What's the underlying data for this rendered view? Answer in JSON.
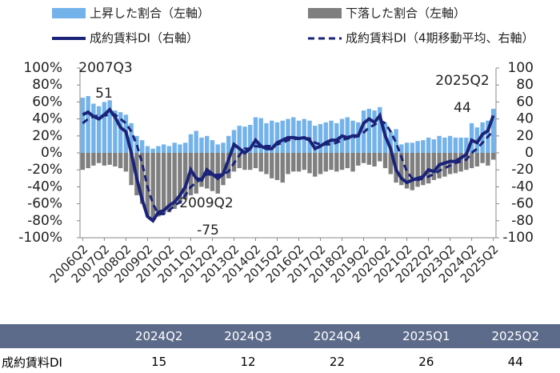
{
  "chart_data": {
    "type": "bar_line",
    "categories": [
      "2006Q2",
      null,
      null,
      null,
      "2007Q2",
      null,
      null,
      null,
      "2008Q2",
      null,
      null,
      null,
      "2009Q2",
      null,
      null,
      null,
      "2010Q2",
      null,
      null,
      null,
      "2011Q2",
      null,
      null,
      null,
      "2012Q2",
      null,
      null,
      null,
      "2013Q2",
      null,
      null,
      null,
      "2014Q2",
      null,
      null,
      null,
      "2015Q2",
      null,
      null,
      null,
      "2016Q2",
      null,
      null,
      null,
      "2017Q2",
      null,
      null,
      null,
      "2018Q2",
      null,
      null,
      null,
      "2019Q2",
      null,
      null,
      null,
      "2020Q2",
      null,
      null,
      null,
      "2021Q2",
      null,
      null,
      null,
      "2022Q2",
      null,
      null,
      null,
      "2023Q2",
      null,
      null,
      null,
      "2024Q2",
      null,
      null,
      null,
      "2025Q2"
    ],
    "series": [
      {
        "name": "上昇した割合（左軸）",
        "color": "#74b3ea",
        "kind": "bar",
        "values": [
          65,
          67,
          58,
          55,
          60,
          62,
          50,
          48,
          45,
          35,
          20,
          15,
          8,
          5,
          8,
          10,
          8,
          12,
          10,
          12,
          22,
          26,
          18,
          20,
          15,
          10,
          12,
          20,
          27,
          32,
          31,
          33,
          42,
          41,
          35,
          38,
          36,
          38,
          40,
          42,
          38,
          40,
          38,
          32,
          34,
          36,
          38,
          35,
          40,
          42,
          38,
          36,
          50,
          52,
          50,
          54,
          35,
          25,
          28,
          10,
          12,
          12,
          14,
          15,
          18,
          16,
          20,
          18,
          20,
          18,
          18,
          18,
          35,
          30,
          36,
          38,
          52
        ]
      },
      {
        "name": "下落した割合（左軸）",
        "color": "#7f7f7f",
        "kind": "bar",
        "values": [
          -20,
          -18,
          -15,
          -12,
          -15,
          -14,
          -16,
          -18,
          -22,
          -38,
          -50,
          -60,
          -75,
          -78,
          -75,
          -72,
          -70,
          -66,
          -60,
          -55,
          -50,
          -48,
          -40,
          -42,
          -45,
          -48,
          -38,
          -30,
          -22,
          -18,
          -20,
          -20,
          -18,
          -22,
          -25,
          -30,
          -32,
          -35,
          -25,
          -22,
          -22,
          -20,
          -24,
          -28,
          -25,
          -22,
          -20,
          -22,
          -20,
          -18,
          -22,
          -15,
          -12,
          -14,
          -16,
          -10,
          -18,
          -25,
          -35,
          -38,
          -42,
          -44,
          -40,
          -38,
          -36,
          -32,
          -30,
          -28,
          -25,
          -24,
          -22,
          -20,
          -18,
          -16,
          -12,
          -15,
          -8
        ]
      },
      {
        "name": "成約賃料DI（右軸）",
        "color": "#1b2378",
        "kind": "line",
        "axis": "y2",
        "values": [
          45,
          48,
          43,
          40,
          45,
          51,
          42,
          30,
          25,
          0,
          -30,
          -55,
          -75,
          -80,
          -70,
          -68,
          -62,
          -58,
          -50,
          -40,
          -20,
          -30,
          -32,
          -20,
          -25,
          -30,
          -25,
          -8,
          10,
          5,
          0,
          5,
          15,
          8,
          5,
          5,
          12,
          15,
          18,
          18,
          17,
          18,
          15,
          5,
          8,
          12,
          15,
          15,
          20,
          18,
          20,
          20,
          35,
          40,
          36,
          44,
          20,
          5,
          -20,
          -30,
          -35,
          -32,
          -30,
          -28,
          -20,
          -22,
          -14,
          -12,
          -10,
          -10,
          -6,
          -2,
          15,
          12,
          22,
          26,
          44
        ]
      },
      {
        "name": "成約賃料DI（4期移動平均、右軸）",
        "color": "#1b2378",
        "kind": "dashed",
        "axis": "y2",
        "values": [
          35,
          40,
          43,
          44,
          44,
          45,
          45,
          40,
          35,
          25,
          10,
          -12,
          -40,
          -60,
          -72,
          -72,
          -68,
          -62,
          -58,
          -50,
          -40,
          -35,
          -30,
          -25,
          -26,
          -26,
          -25,
          -22,
          -12,
          -3,
          5,
          5,
          8,
          7,
          8,
          8,
          10,
          12,
          15,
          16,
          17,
          17,
          17,
          12,
          10,
          10,
          10,
          12,
          15,
          17,
          18,
          20,
          24,
          30,
          33,
          38,
          35,
          25,
          12,
          -5,
          -22,
          -30,
          -32,
          -30,
          -28,
          -25,
          -21,
          -18,
          -15,
          -12,
          -10,
          -8,
          0,
          5,
          12,
          19,
          26
        ]
      }
    ],
    "ylim": [
      -100,
      100
    ],
    "yticks": [
      {
        "value": -100,
        "label": "-100%"
      },
      {
        "value": -80,
        "label": "-80%"
      },
      {
        "value": -60,
        "label": "-60%"
      },
      {
        "value": -40,
        "label": "-40%"
      },
      {
        "value": -20,
        "label": "-20%"
      },
      {
        "value": 0,
        "label": "0%"
      },
      {
        "value": 20,
        "label": "20%"
      },
      {
        "value": 40,
        "label": "40%"
      },
      {
        "value": 60,
        "label": "60%"
      },
      {
        "value": 80,
        "label": "80%"
      },
      {
        "value": 100,
        "label": "100%"
      }
    ],
    "y2lim": [
      -100,
      100
    ],
    "y2ticks": [
      -100,
      -80,
      -60,
      -40,
      -20,
      0,
      20,
      40,
      60,
      80,
      100
    ],
    "annotations": [
      "2007Q3",
      "51",
      "2009Q2",
      "-75",
      "2025Q2",
      "44"
    ]
  },
  "table": {
    "columns": [
      "2024Q2",
      "2024Q3",
      "2024Q4",
      "2025Q1",
      "2025Q2"
    ],
    "rows": [
      [
        "成約賃料DI",
        15,
        12,
        22,
        26,
        44
      ]
    ]
  }
}
